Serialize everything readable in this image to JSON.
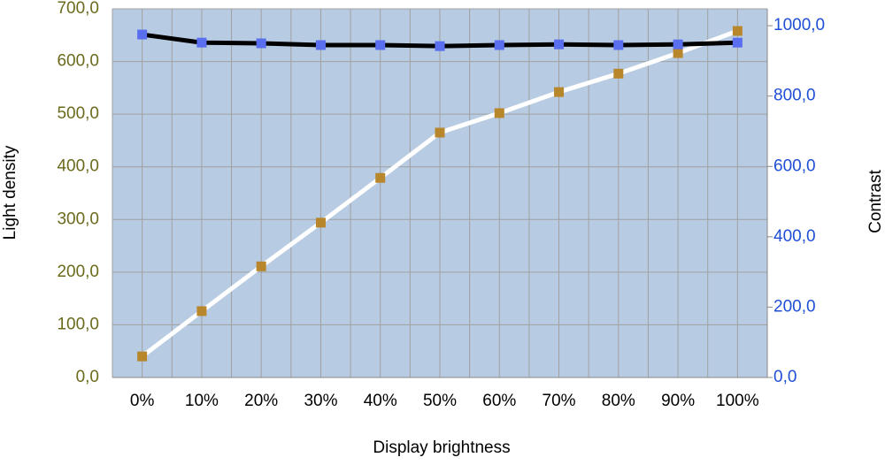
{
  "chart_data": {
    "type": "line",
    "x_label": "Display brightness",
    "y_label": "Light density",
    "y2_label": "Contrast",
    "categories": [
      "0%",
      "10%",
      "20%",
      "30%",
      "40%",
      "50%",
      "60%",
      "70%",
      "80%",
      "90%",
      "100%"
    ],
    "series": [
      {
        "name": "Light density",
        "color": "#ffffff",
        "marker_color": "#b8862b",
        "values": [
          40,
          126,
          211,
          294,
          379,
          465,
          502,
          542,
          577,
          616,
          658
        ]
      },
      {
        "name": "Contrast",
        "color": "#000000",
        "marker_color": "#5a6ef0",
        "axis": "y2",
        "values": [
          975,
          952,
          950,
          945,
          945,
          942,
          945,
          947,
          945,
          947,
          952
        ]
      }
    ],
    "ylim": [
      0,
      700
    ],
    "yticks": [
      {
        "value": 0,
        "label": "0,0"
      },
      {
        "value": 100,
        "label": "100,0"
      },
      {
        "value": 200,
        "label": "200,0"
      },
      {
        "value": 300,
        "label": "300,0"
      },
      {
        "value": 400,
        "label": "400,0"
      },
      {
        "value": 500,
        "label": "500,0"
      },
      {
        "value": 600,
        "label": "600,0"
      },
      {
        "value": 700,
        "label": "700,0"
      }
    ],
    "y2lim": [
      0,
      1048
    ],
    "y2ticks": [
      {
        "value": 0,
        "label": "0,0"
      },
      {
        "value": 200,
        "label": "200,0"
      },
      {
        "value": 400,
        "label": "400,0"
      },
      {
        "value": 600,
        "label": "600,0"
      },
      {
        "value": 800,
        "label": "800,0"
      },
      {
        "value": 1000,
        "label": "1000,0"
      }
    ],
    "grid": true
  }
}
